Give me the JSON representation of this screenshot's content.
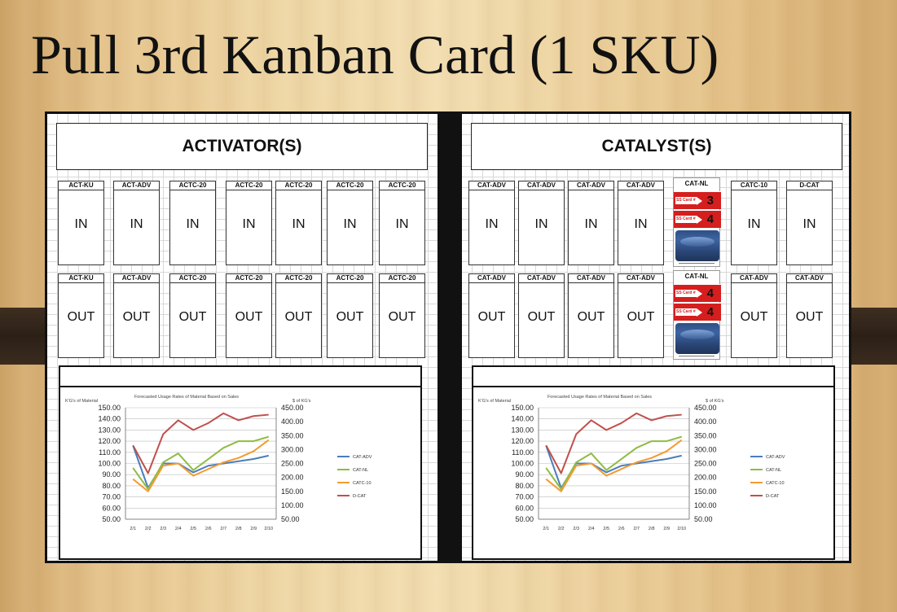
{
  "slide": {
    "title": "Pull 3rd Kanban Card (1 SKU)"
  },
  "activator": {
    "header": "ACTIVATOR(S)",
    "in_cards": [
      {
        "label": "ACT-KU",
        "text": "IN"
      },
      {
        "label": "ACT-ADV",
        "text": "IN"
      },
      {
        "label": "ACTC-20",
        "text": "IN"
      },
      {
        "label": "ACTC-20",
        "text": "IN"
      },
      {
        "label": "ACTC-20",
        "text": "IN"
      },
      {
        "label": "ACTC-20",
        "text": "IN"
      },
      {
        "label": "ACTC-20",
        "text": "IN"
      }
    ],
    "out_cards": [
      {
        "label": "ACT-KU",
        "text": "OUT"
      },
      {
        "label": "ACT-ADV",
        "text": "OUT"
      },
      {
        "label": "ACTC-20",
        "text": "OUT"
      },
      {
        "label": "ACTC-20",
        "text": "OUT"
      },
      {
        "label": "ACTC-20",
        "text": "OUT"
      },
      {
        "label": "ACTC-20",
        "text": "OUT"
      },
      {
        "label": "ACTC-20",
        "text": "OUT"
      }
    ]
  },
  "catalyst": {
    "header": "CATALYST(S)",
    "in_cards": [
      {
        "label": "CAT-ADV",
        "text": "IN"
      },
      {
        "label": "CAT-ADV",
        "text": "IN"
      },
      {
        "label": "CAT-ADV",
        "text": "IN"
      },
      {
        "label": "CAT-ADV",
        "text": "IN"
      },
      {
        "label": "CATC-10",
        "text": "IN"
      },
      {
        "label": "D-CAT",
        "text": "IN"
      }
    ],
    "out_cards": [
      {
        "label": "CAT-ADV",
        "text": "OUT"
      },
      {
        "label": "CAT-ADV",
        "text": "OUT"
      },
      {
        "label": "CAT-ADV",
        "text": "OUT"
      },
      {
        "label": "CAT-ADV",
        "text": "OUT"
      },
      {
        "label": "CAT-ADV",
        "text": "OUT"
      },
      {
        "label": "CAT-ADV",
        "text": "OUT"
      }
    ],
    "special_in": {
      "label": "CAT-NL",
      "ss_cards": [
        {
          "tag": "SS Card #",
          "number": "3"
        },
        {
          "tag": "SS Card #",
          "number": "4"
        }
      ]
    },
    "special_out": {
      "label": "CAT-NL",
      "ss_cards": [
        {
          "tag": "SS Card #",
          "number": "4"
        },
        {
          "tag": "SS Card #",
          "number": "4"
        }
      ]
    }
  },
  "colors": {
    "cat_adv": "#4a7ebb",
    "cat_nl": "#8fbc45",
    "catc_10": "#f39b32",
    "d_cat": "#c0504d",
    "kanban_red": "#d51e1e"
  },
  "chart_data": {
    "type": "line",
    "title": "Forecasted Usage Rates of Material Based on Sales",
    "ylabel": "K'G's of Material",
    "y2label": "$ of KG's",
    "categories": [
      "2/1",
      "2/2",
      "2/3",
      "2/4",
      "2/5",
      "2/6",
      "2/7",
      "2/8",
      "2/9",
      "2/10"
    ],
    "ylim": [
      50,
      150
    ],
    "yticks": [
      "150.00",
      "140.00",
      "130.00",
      "120.00",
      "110.00",
      "100.00",
      "90.00",
      "80.00",
      "70.00",
      "60.00",
      "50.00"
    ],
    "y2lim": [
      50,
      450
    ],
    "y2ticks": [
      "450.00",
      "400.00",
      "350.00",
      "300.00",
      "250.00",
      "200.00",
      "150.00",
      "100.00",
      "50.00"
    ],
    "legend_position": "right",
    "grid": true,
    "series": [
      {
        "name": "CAT-ADV",
        "axis": "left",
        "color": "#4a7ebb",
        "values": [
          116,
          78,
          100,
          100,
          92,
          98,
          100,
          102,
          104,
          107
        ]
      },
      {
        "name": "CAT-NL",
        "axis": "left",
        "color": "#8fbc45",
        "values": [
          96,
          77,
          101,
          109,
          94,
          104,
          114,
          120,
          120,
          124
        ]
      },
      {
        "name": "CATC-10",
        "axis": "left",
        "color": "#f39b32",
        "values": [
          86,
          75,
          98,
          100,
          89,
          95,
          101,
          105,
          111,
          121
        ]
      },
      {
        "name": "D-CAT",
        "axis": "right",
        "color": "#c0504d",
        "values": [
          315,
          215,
          355,
          405,
          370,
          395,
          430,
          405,
          420,
          425
        ]
      }
    ]
  }
}
